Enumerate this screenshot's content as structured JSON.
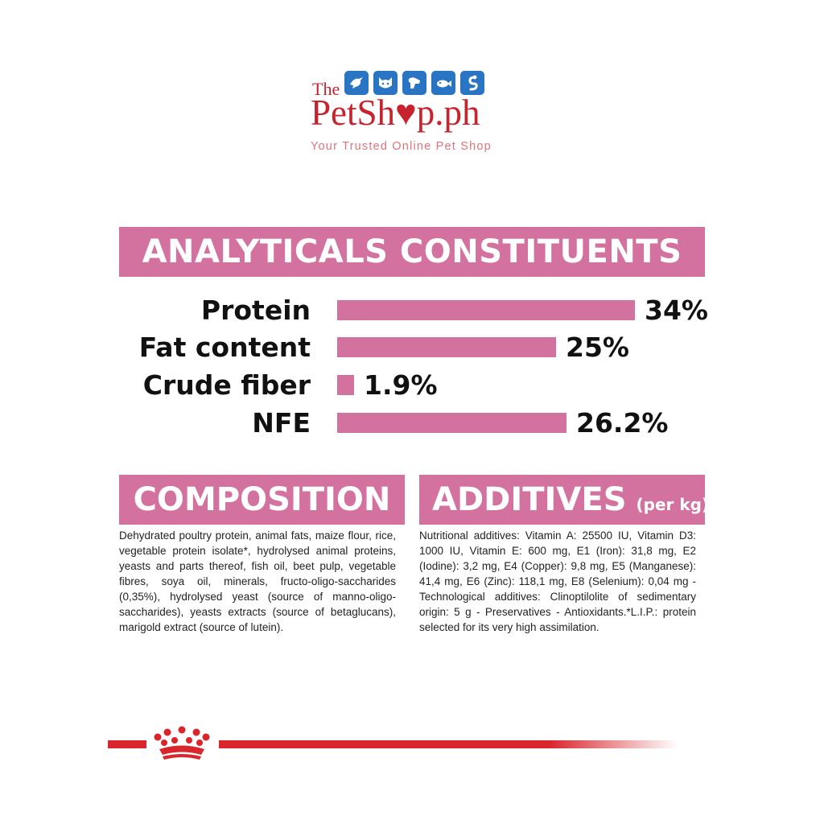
{
  "logo": {
    "the": "The",
    "name_part1": "PetSh",
    "heart": "♥",
    "name_part2": "p.ph",
    "tagline": "Your Trusted Online Pet Shop",
    "icons": [
      "bird-icon",
      "cat-icon",
      "dog-icon",
      "fish-icon",
      "snake-icon"
    ]
  },
  "analyticals": {
    "title": "ANALYTICALS CONSTITUENTS",
    "rows": [
      {
        "label": "Protein",
        "value": "34%",
        "percent": 34
      },
      {
        "label": "Fat content",
        "value": "25%",
        "percent": 25
      },
      {
        "label": "Crude fiber",
        "value": "1.9%",
        "percent": 1.9
      },
      {
        "label": "NFE",
        "value": "26.2%",
        "percent": 26.2
      }
    ]
  },
  "composition": {
    "title": "COMPOSITION",
    "text": "Dehydrated poultry protein, animal fats, maize flour, rice, vegetable protein isolate*, hydrolysed animal proteins, yeasts and parts thereof, fish oil, beet pulp, vegetable fibres, soya oil, minerals, fructo-oligo-saccharides (0,35%), hydrolysed yeast (source of manno-oligo-saccharides), yeasts extracts (source of betaglucans), marigold extract (source of lutein)."
  },
  "additives": {
    "title": "ADDITIVES",
    "subtitle": "(per kg)",
    "text": "Nutritional additives: Vitamin A: 25500 IU, Vitamin D3: 1000 IU, Vitamin E: 600 mg, E1 (Iron): 31,8 mg, E2 (Iodine): 3,2 mg, E4 (Copper): 9,8 mg, E5 (Manganese): 41,4 mg, E6 (Zinc): 118,1 mg, E8 (Selenium): 0,04 mg - Technological additives: Clinoptilolite of sedimentary origin: 5 g - Preservatives - Antioxidants.*L.I.P.: protein selected for its very high assimilation."
  },
  "colors": {
    "accent_pink": "#d4729f",
    "brand_red": "#c8232c",
    "crown_red": "#d8262c"
  }
}
